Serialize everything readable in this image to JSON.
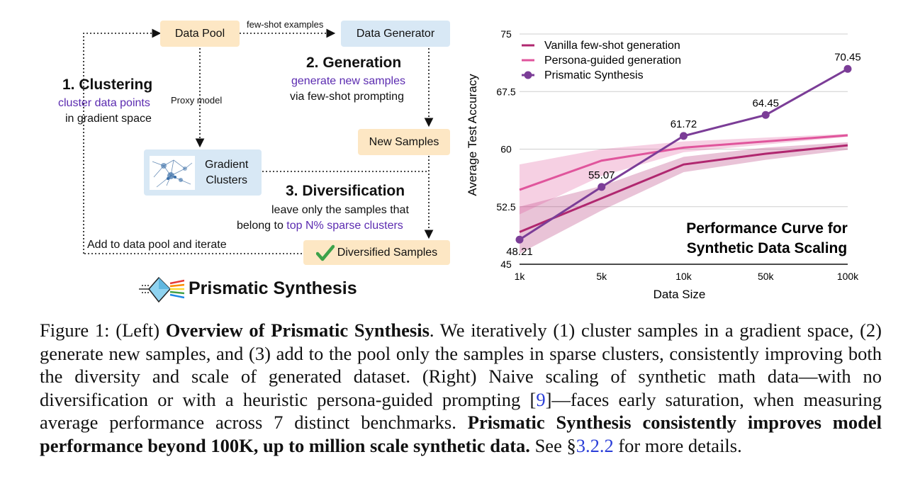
{
  "diagram": {
    "data_pool": "Data Pool",
    "few_shot": "few-shot examples",
    "data_generator": "Data Generator",
    "step2_title": "2. Generation",
    "step2_line1": "generate new samples",
    "step2_line2": "via few-shot prompting",
    "step1_title": "1. Clustering",
    "step1_line1": "cluster data points",
    "step1_line2": "in gradient space",
    "proxy_model": "Proxy model",
    "new_samples": "New Samples",
    "gradient_clusters_l1": "Gradient",
    "gradient_clusters_l2": "Clusters",
    "step3_title": "3. Diversification",
    "step3_line1": "leave only the samples that",
    "step3_line2a": "belong to ",
    "step3_line2b": "top N% sparse clusters",
    "add_to_pool": "Add to data pool and iterate",
    "diversified": "Diversified Samples",
    "logo_text": "Prismatic Synthesis"
  },
  "chart_data": {
    "type": "line",
    "title": "Performance Curve for Synthetic Data Scaling",
    "title_line1": "Performance Curve for",
    "title_line2": "Synthetic Data Scaling",
    "xlabel": "Data Size",
    "ylabel": "Average Test Accuracy",
    "categories": [
      "1k",
      "5k",
      "10k",
      "50k",
      "100k"
    ],
    "yticks": [
      "45",
      "52.5",
      "60",
      "67.5",
      "75"
    ],
    "ylim": [
      45,
      75
    ],
    "legend_position": "top-left",
    "series": [
      {
        "name": "Vanilla few-shot generation",
        "color": "#b0276f",
        "values": [
          49.2,
          53.6,
          58.0,
          59.4,
          60.5
        ],
        "band_low": [
          46.4,
          52.0,
          57.0,
          58.6,
          59.9
        ],
        "band_high": [
          52.5,
          55.2,
          59.0,
          60.2,
          60.9
        ]
      },
      {
        "name": "Persona-guided generation",
        "color": "#e0559c",
        "values": [
          54.7,
          58.5,
          60.2,
          61.0,
          61.8
        ],
        "band_low": [
          51.5,
          56.5,
          59.6,
          60.6,
          61.6
        ],
        "band_high": [
          58.0,
          60.0,
          61.0,
          61.5,
          62.0
        ]
      },
      {
        "name": "Prismatic Synthesis",
        "color": "#7b3d97",
        "values": [
          48.21,
          55.07,
          61.72,
          64.45,
          70.45
        ],
        "labels": [
          "48.21",
          "55.07",
          "61.72",
          "64.45",
          "70.45"
        ]
      }
    ]
  },
  "caption": {
    "p1": "Figure 1: (Left) ",
    "b1": "Overview of Prismatic Synthesis",
    "p2": ". We iteratively (1) cluster samples in a gradient space, (2) generate new samples, and (3) add to the pool only the samples in sparse clusters, consistently improving both the diversity and scale of generated dataset. (Right) Naive scaling of synthetic math data—with no diversification or with a heuristic persona-guided prompting [",
    "ref": "9",
    "p3": "]—faces early saturation, when measuring average performance across 7 distinct benchmarks. ",
    "b2": "Prismatic Synthesis consistently improves model performance beyond 100K, up to million scale synthetic data.",
    "p4": " See §",
    "sec": "3.2.2",
    "p5": " for more details."
  }
}
